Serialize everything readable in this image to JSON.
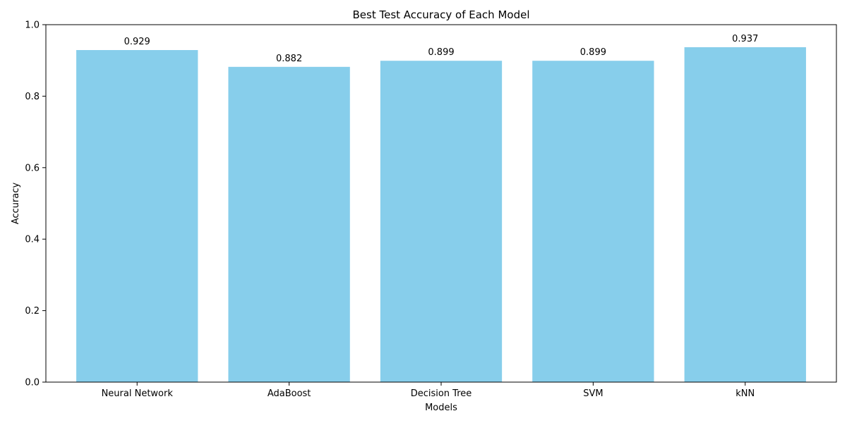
{
  "chart_data": {
    "type": "bar",
    "title": "Best Test Accuracy of Each Model",
    "xlabel": "Models",
    "ylabel": "Accuracy",
    "categories": [
      "Neural Network",
      "AdaBoost",
      "Decision Tree",
      "SVM",
      "kNN"
    ],
    "values": [
      0.929,
      0.882,
      0.899,
      0.899,
      0.937
    ],
    "data_labels": [
      "0.929",
      "0.882",
      "0.899",
      "0.899",
      "0.937"
    ],
    "ylim": [
      0,
      1.0
    ],
    "yticks": [
      0.0,
      0.2,
      0.4,
      0.6,
      0.8,
      1.0
    ],
    "ytick_labels": [
      "0.0",
      "0.2",
      "0.4",
      "0.6",
      "0.8",
      "1.0"
    ],
    "grid": false,
    "legend": "none",
    "bar_color": "#87ceeb"
  }
}
